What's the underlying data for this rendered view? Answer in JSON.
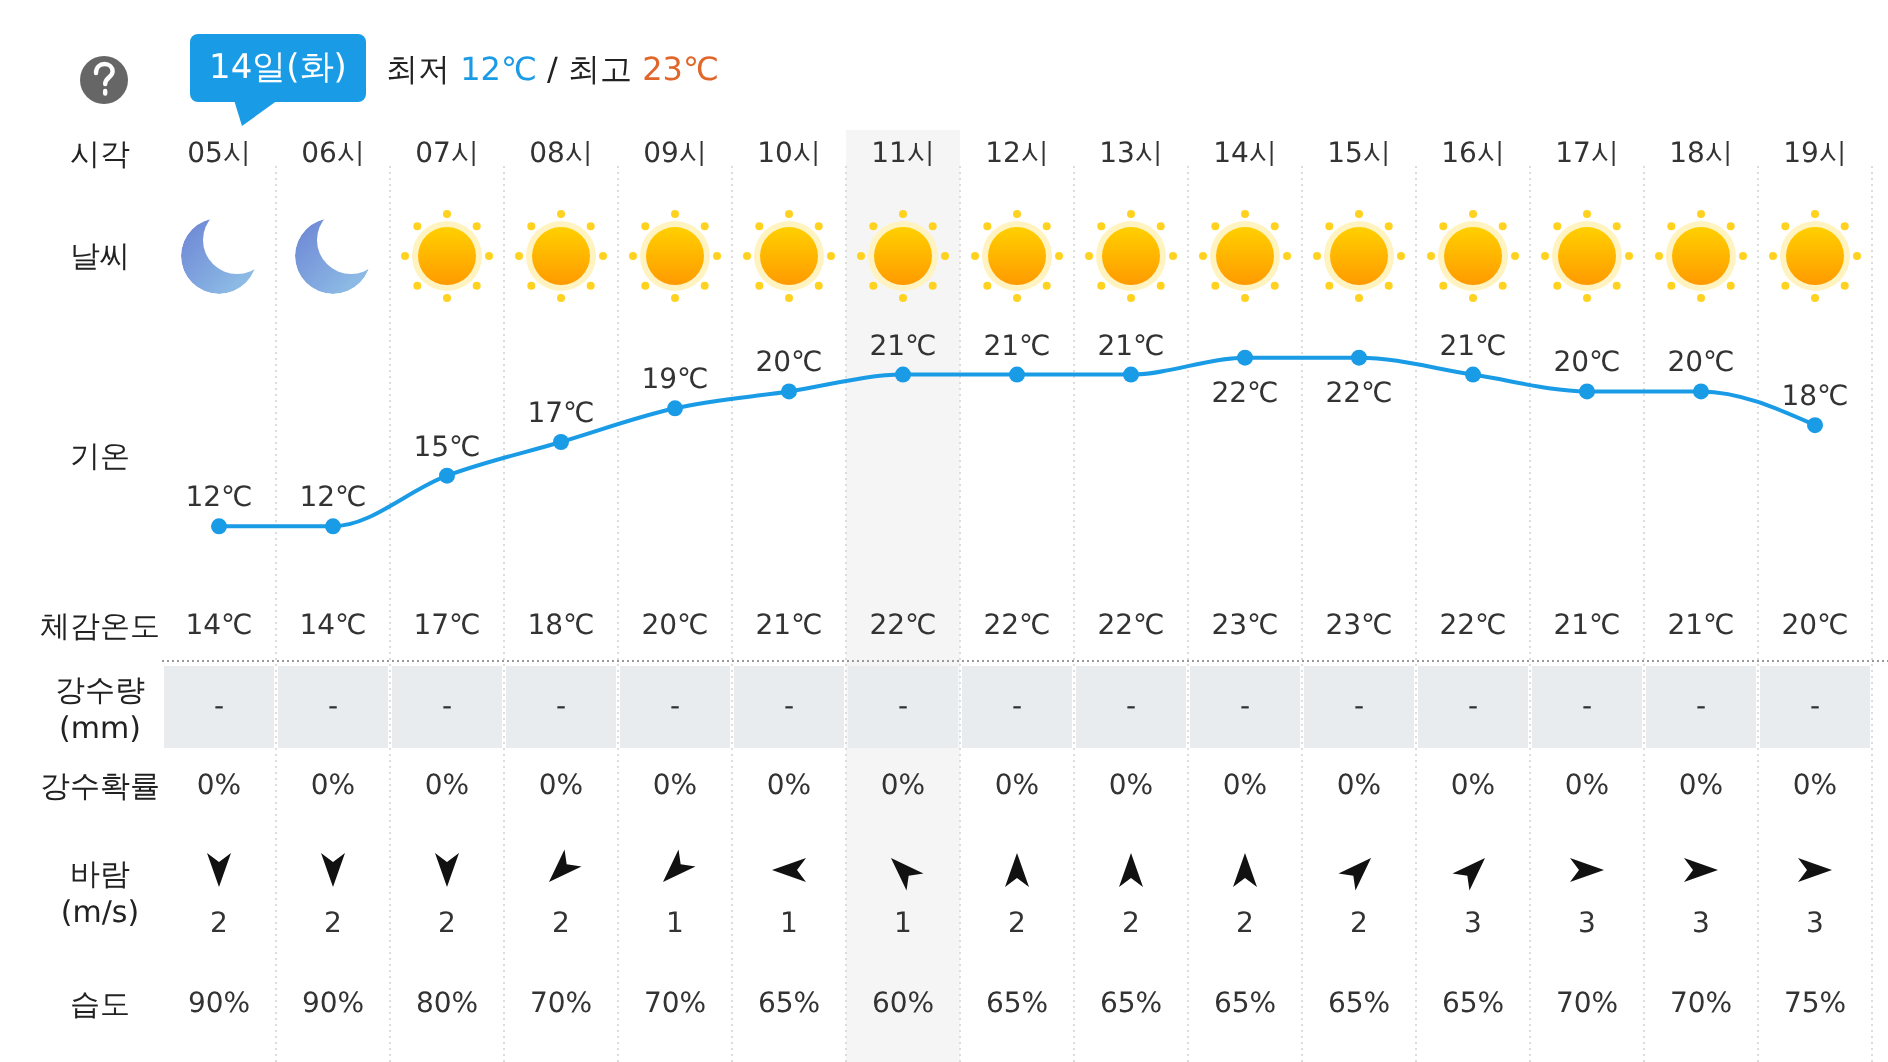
{
  "chart_data": [
    {
      "type": "line",
      "title": "14일(화)",
      "subtitle": "최저 12℃ / 최고 23℃",
      "xlabel": "시각",
      "ylabel": "기온",
      "annotations": [
        "날씨"
      ],
      "categories": [
        "05시",
        "06시",
        "07시",
        "08시",
        "09시",
        "10시",
        "11시",
        "12시",
        "13시",
        "14시",
        "15시",
        "16시",
        "17시",
        "18시",
        "19시"
      ],
      "series": [
        {
          "color": "#1a9be6",
          "values": [
            12,
            12,
            15,
            17,
            19,
            20,
            21,
            21,
            21,
            22,
            22,
            21,
            20,
            20,
            18
          ],
          "value_labels": [
            "12℃",
            "12℃",
            "15℃",
            "17℃",
            "19℃",
            "20℃",
            "21℃",
            "21℃",
            "21℃",
            "22℃",
            "22℃",
            "21℃",
            "20℃",
            "20℃",
            "18℃"
          ]
        }
      ],
      "tick_labels": "x",
      "marker": "circle",
      "bands": [
        {
          "axis": "x",
          "from": "11시",
          "to": "11시",
          "color": "#f5f5f5"
        }
      ]
    },
    {
      "type": "heatmap",
      "categories": [
        null,
        null,
        null,
        null,
        null,
        null,
        null,
        null,
        null,
        null,
        null,
        null,
        null,
        null,
        null
      ],
      "y_categories": [
        "체감온도",
        "강수량 (mm)",
        "강수확률",
        "바람 (m/s)",
        "습도"
      ],
      "cells": [
        [
          14,
          14,
          17,
          18,
          20,
          21,
          22,
          22,
          22,
          23,
          23,
          22,
          21,
          21,
          20
        ],
        [
          null,
          null,
          null,
          null,
          null,
          null,
          null,
          null,
          null,
          null,
          null,
          null,
          null,
          null,
          null
        ],
        [
          0,
          0,
          0,
          0,
          0,
          0,
          0,
          0,
          0,
          0,
          0,
          0,
          0,
          0,
          0
        ],
        [
          2,
          2,
          2,
          2,
          1,
          1,
          1,
          2,
          2,
          2,
          2,
          3,
          3,
          3,
          3
        ],
        [
          90,
          90,
          80,
          70,
          70,
          65,
          60,
          65,
          65,
          65,
          65,
          65,
          70,
          70,
          75
        ]
      ],
      "cell_labels": [
        [
          "14℃",
          "14℃",
          "17℃",
          "18℃",
          "20℃",
          "21℃",
          "22℃",
          "22℃",
          "22℃",
          "23℃",
          "23℃",
          "22℃",
          "21℃",
          "21℃",
          "20℃"
        ],
        [
          "-",
          "-",
          "-",
          "-",
          "-",
          "-",
          "-",
          "-",
          "-",
          "-",
          "-",
          "-",
          "-",
          "-",
          "-"
        ],
        [
          "0%",
          "0%",
          "0%",
          "0%",
          "0%",
          "0%",
          "0%",
          "0%",
          "0%",
          "0%",
          "0%",
          "0%",
          "0%",
          "0%",
          "0%"
        ],
        [
          "2",
          "2",
          "2",
          "2",
          "1",
          "1",
          "1",
          "2",
          "2",
          "2",
          "2",
          "3",
          "3",
          "3",
          "3"
        ],
        [
          "90%",
          "90%",
          "80%",
          "70%",
          "70%",
          "65%",
          "60%",
          "65%",
          "65%",
          "65%",
          "65%",
          "65%",
          "70%",
          "70%",
          "75%"
        ]
      ],
      "tick_labels": "y"
    }
  ]
}
